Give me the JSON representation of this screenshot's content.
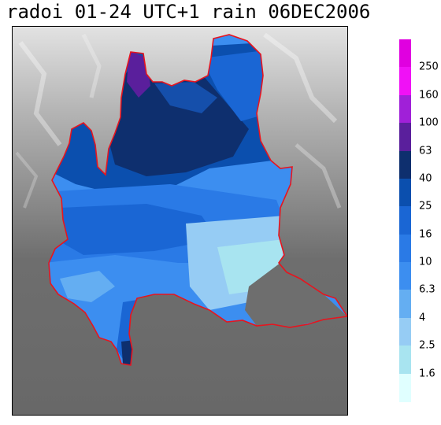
{
  "title": "radoi 01-24 UTC+1 rain 06DEC2006",
  "colors": {
    "border": "#e8141e",
    "terrain_low": "#6e6e6e",
    "terrain_high": "#e6e6e6"
  },
  "legend": {
    "labels": [
      "250",
      "160",
      "100",
      "63",
      "40",
      "25",
      "16",
      "10",
      "6.3",
      "4",
      "2.5",
      "1.6"
    ],
    "colors": [
      "#e000e0",
      "#f011f6",
      "#a020d8",
      "#5a1f9c",
      "#0e2f6e",
      "#0b4fae",
      "#1a66d4",
      "#2a7ae6",
      "#3c8ef0",
      "#64aef2",
      "#96ccf4",
      "#a8e4f0",
      "#e0ffff"
    ]
  }
}
